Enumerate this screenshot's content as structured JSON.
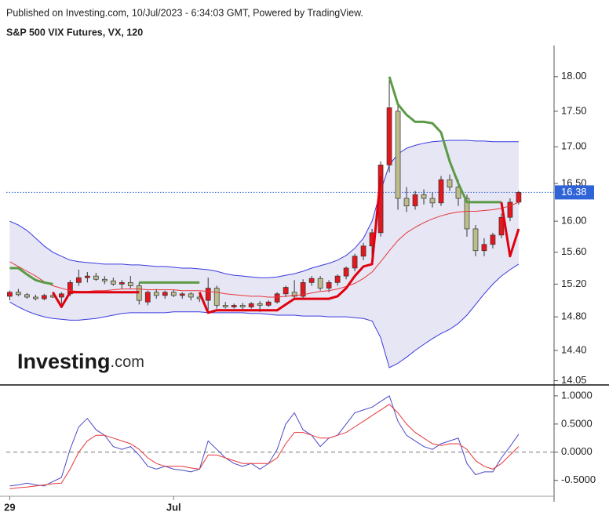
{
  "header": {
    "published": "Published on Investing.com, 10/Jul/2023 - 6:34:03 GMT, Powered by TradingView.",
    "symbol": "S&P 500 VIX Futures, VX, 120"
  },
  "watermark": {
    "bold": "Investing",
    "light": ".com"
  },
  "chart_data": [
    {
      "type": "candlestick",
      "log": true,
      "xlim": [
        -0.4,
        63.1
      ],
      "ylim": [
        14.01,
        18.44
      ],
      "yticks": [
        {
          "value": 18,
          "label": "18.00"
        },
        {
          "value": 17.5,
          "label": "17.50"
        },
        {
          "value": 17,
          "label": "17.00"
        },
        {
          "value": 16.5,
          "label": "16.50"
        },
        {
          "value": 16,
          "label": "16.00"
        },
        {
          "value": 15.6,
          "label": "15.60"
        },
        {
          "value": 15.2,
          "label": "15.20"
        },
        {
          "value": 14.8,
          "label": "14.80"
        },
        {
          "value": 14.4,
          "label": "14.40"
        },
        {
          "value": 14.05,
          "label": "14.05"
        }
      ],
      "last_price": {
        "value": 16.38,
        "label": "16.38",
        "color": "#2f63d8"
      },
      "up_color": "#e3171e",
      "down_color": "#bdbd8c",
      "open": [
        15.05,
        15.1,
        15.07,
        15.04,
        15.02,
        15.06,
        15.04,
        15.08,
        15.22,
        15.28,
        15.3,
        15.26,
        15.24,
        15.2,
        15.22,
        15.18,
        14.98,
        15.1,
        15.06,
        15.1,
        15.06,
        15.08,
        15.04,
        15.0,
        15.15,
        14.94,
        14.92,
        14.94,
        14.92,
        14.96,
        14.94,
        14.98,
        15.08,
        15.1,
        15.05,
        15.22,
        15.27,
        15.15,
        15.22,
        15.3,
        15.4,
        15.55,
        15.68,
        15.85,
        16.75,
        17.5,
        16.3,
        16.2,
        16.35,
        16.3,
        16.24,
        16.55,
        16.45,
        16.3,
        15.9,
        15.62,
        15.7,
        15.82,
        16.05,
        16.25
      ],
      "high": [
        15.12,
        15.14,
        15.09,
        15.07,
        15.08,
        15.1,
        15.1,
        15.25,
        15.38,
        15.35,
        15.34,
        15.3,
        15.28,
        15.25,
        15.3,
        15.22,
        15.12,
        15.14,
        15.12,
        15.13,
        15.1,
        15.1,
        15.08,
        15.28,
        15.18,
        14.98,
        14.96,
        14.97,
        14.98,
        14.99,
        15.0,
        15.1,
        15.18,
        15.25,
        15.26,
        15.3,
        15.3,
        15.25,
        15.32,
        15.42,
        15.58,
        15.72,
        15.9,
        16.8,
        17.95,
        17.6,
        16.45,
        16.4,
        16.42,
        16.38,
        16.6,
        16.62,
        16.55,
        16.35,
        15.95,
        15.78,
        15.85,
        16.1,
        16.3,
        16.4
      ],
      "low": [
        15.0,
        15.05,
        15.02,
        15.0,
        15.0,
        15.03,
        14.95,
        15.05,
        15.18,
        15.22,
        15.24,
        15.2,
        15.18,
        15.14,
        15.15,
        14.95,
        14.94,
        15.02,
        15.02,
        15.04,
        15.02,
        15.0,
        14.98,
        14.88,
        14.9,
        14.9,
        14.9,
        14.88,
        14.9,
        14.86,
        14.92,
        14.96,
        15.04,
        15.02,
        15.02,
        15.18,
        15.12,
        15.1,
        15.18,
        15.26,
        15.36,
        15.5,
        15.55,
        15.8,
        16.65,
        16.15,
        16.12,
        16.15,
        16.22,
        16.18,
        16.2,
        16.4,
        16.2,
        15.8,
        15.55,
        15.55,
        15.65,
        15.78,
        16.0,
        16.22
      ],
      "close": [
        15.1,
        15.07,
        15.04,
        15.02,
        15.06,
        15.04,
        15.08,
        15.22,
        15.28,
        15.3,
        15.26,
        15.24,
        15.2,
        15.22,
        15.18,
        15.0,
        15.1,
        15.06,
        15.1,
        15.06,
        15.08,
        15.04,
        15.02,
        15.15,
        14.94,
        14.92,
        14.94,
        14.92,
        14.96,
        14.94,
        14.98,
        15.08,
        15.16,
        15.05,
        15.22,
        15.27,
        15.15,
        15.22,
        15.3,
        15.4,
        15.55,
        15.68,
        15.85,
        16.75,
        17.55,
        16.3,
        16.2,
        16.35,
        16.3,
        16.24,
        16.55,
        16.45,
        16.3,
        15.9,
        15.62,
        15.7,
        15.82,
        16.05,
        16.25,
        16.38
      ],
      "band": {
        "fill": "#dcdcf0",
        "color": "#3a3ae0",
        "upper": [
          16.0,
          15.95,
          15.88,
          15.78,
          15.68,
          15.6,
          15.55,
          15.5,
          15.48,
          15.47,
          15.46,
          15.45,
          15.45,
          15.45,
          15.44,
          15.44,
          15.43,
          15.42,
          15.42,
          15.41,
          15.4,
          15.4,
          15.39,
          15.38,
          15.36,
          15.33,
          15.31,
          15.3,
          15.29,
          15.28,
          15.28,
          15.29,
          15.31,
          15.33,
          15.36,
          15.4,
          15.43,
          15.46,
          15.5,
          15.56,
          15.65,
          15.78,
          16.0,
          16.4,
          16.75,
          16.9,
          16.98,
          17.02,
          17.05,
          17.07,
          17.08,
          17.09,
          17.09,
          17.09,
          17.08,
          17.08,
          17.07,
          17.07,
          17.07,
          17.07
        ],
        "lower": [
          14.98,
          14.92,
          14.87,
          14.83,
          14.8,
          14.78,
          14.77,
          14.76,
          14.76,
          14.77,
          14.78,
          14.8,
          14.82,
          14.84,
          14.85,
          14.85,
          14.85,
          14.85,
          14.85,
          14.86,
          14.86,
          14.86,
          14.86,
          14.85,
          14.85,
          14.85,
          14.85,
          14.85,
          14.84,
          14.84,
          14.83,
          14.82,
          14.82,
          14.82,
          14.81,
          14.81,
          14.81,
          14.8,
          14.8,
          14.8,
          14.79,
          14.78,
          14.75,
          14.55,
          14.2,
          14.25,
          14.32,
          14.4,
          14.47,
          14.54,
          14.6,
          14.65,
          14.72,
          14.82,
          14.95,
          15.08,
          15.2,
          15.3,
          15.38,
          15.45
        ]
      },
      "lines": [
        {
          "color": "#e8373a",
          "width": 1,
          "values": [
            15.48,
            15.42,
            15.36,
            15.3,
            15.23,
            15.18,
            15.15,
            15.12,
            15.11,
            15.11,
            15.12,
            15.12,
            15.13,
            15.14,
            15.14,
            15.14,
            15.13,
            15.13,
            15.13,
            15.13,
            15.12,
            15.12,
            15.12,
            15.11,
            15.1,
            15.08,
            15.07,
            15.06,
            15.05,
            15.05,
            15.04,
            15.04,
            15.05,
            15.06,
            15.07,
            15.09,
            15.11,
            15.12,
            15.14,
            15.17,
            15.21,
            15.27,
            15.35,
            15.48,
            15.62,
            15.75,
            15.85,
            15.92,
            15.98,
            16.03,
            16.07,
            16.1,
            16.12,
            16.13,
            16.13,
            16.14,
            16.15,
            16.17,
            16.2,
            16.25
          ]
        },
        {
          "color": "#5c9a45",
          "width": 3,
          "values": [
            15.4,
            15.4,
            15.32,
            15.25,
            15.22,
            15.2,
            null,
            null,
            null,
            null,
            null,
            null,
            null,
            null,
            null,
            15.22,
            15.22,
            15.22,
            15.22,
            15.22,
            15.22,
            15.22,
            15.22,
            null,
            null,
            null,
            null,
            null,
            null,
            null,
            null,
            null,
            null,
            null,
            null,
            null,
            null,
            null,
            null,
            null,
            null,
            null,
            null,
            null,
            18.0,
            17.6,
            17.45,
            17.35,
            17.35,
            17.33,
            17.2,
            16.8,
            16.5,
            16.25,
            16.25,
            16.25,
            16.25,
            16.25,
            null,
            null
          ]
        },
        {
          "color": "#e0000f",
          "width": 3,
          "values": [
            null,
            null,
            null,
            null,
            null,
            15.1,
            14.92,
            15.1,
            15.1,
            15.1,
            15.1,
            15.1,
            15.1,
            15.1,
            15.1,
            15.1,
            null,
            null,
            null,
            null,
            null,
            null,
            15.1,
            14.85,
            14.88,
            14.88,
            14.88,
            14.88,
            14.88,
            14.88,
            14.88,
            14.88,
            14.95,
            15.02,
            15.02,
            15.02,
            15.02,
            15.02,
            15.05,
            15.15,
            15.3,
            15.42,
            15.45,
            16.6,
            null,
            null,
            null,
            null,
            null,
            null,
            null,
            null,
            null,
            null,
            null,
            null,
            null,
            16.25,
            15.55,
            15.9
          ]
        }
      ]
    },
    {
      "type": "line",
      "xlim": [
        -0.4,
        63.1
      ],
      "ylim": [
        -0.81,
        1.18
      ],
      "hline": 0,
      "yticks": [
        {
          "value": 1,
          "label": "1.0000"
        },
        {
          "value": 0.5,
          "label": "0.5000"
        },
        {
          "value": 0,
          "label": "0.0000"
        },
        {
          "value": -0.5,
          "label": "-0.5000"
        }
      ],
      "xticks": [
        {
          "value": 0,
          "label": "29"
        },
        {
          "value": 19,
          "label": "Jul"
        }
      ],
      "series": [
        {
          "color": "#4a48c8",
          "values": [
            -0.6,
            -0.58,
            -0.55,
            -0.58,
            -0.6,
            -0.52,
            -0.45,
            0.05,
            0.45,
            0.6,
            0.4,
            0.3,
            0.1,
            0.05,
            0.1,
            -0.05,
            -0.25,
            -0.3,
            -0.25,
            -0.3,
            -0.32,
            -0.35,
            -0.3,
            0.2,
            0.05,
            -0.1,
            -0.2,
            -0.25,
            -0.2,
            -0.3,
            -0.2,
            0.05,
            0.5,
            0.7,
            0.4,
            0.3,
            0.1,
            0.25,
            0.3,
            0.5,
            0.7,
            0.75,
            0.8,
            0.9,
            1.0,
            0.55,
            0.3,
            0.2,
            0.1,
            0.05,
            0.15,
            0.2,
            0.25,
            -0.2,
            -0.4,
            -0.35,
            -0.35,
            -0.1,
            0.1,
            0.32
          ]
        },
        {
          "color": "#e8373a",
          "values": [
            -0.65,
            -0.63,
            -0.62,
            -0.6,
            -0.58,
            -0.56,
            -0.55,
            -0.3,
            0.0,
            0.2,
            0.3,
            0.3,
            0.25,
            0.2,
            0.15,
            0.05,
            -0.1,
            -0.2,
            -0.25,
            -0.25,
            -0.25,
            -0.28,
            -0.3,
            -0.05,
            -0.05,
            -0.1,
            -0.15,
            -0.2,
            -0.2,
            -0.2,
            -0.2,
            -0.1,
            0.15,
            0.35,
            0.35,
            0.3,
            0.25,
            0.25,
            0.3,
            0.35,
            0.45,
            0.55,
            0.65,
            0.75,
            0.85,
            0.7,
            0.5,
            0.35,
            0.25,
            0.15,
            0.12,
            0.15,
            0.15,
            0.05,
            -0.15,
            -0.25,
            -0.3,
            -0.2,
            -0.05,
            0.1
          ]
        }
      ]
    }
  ]
}
